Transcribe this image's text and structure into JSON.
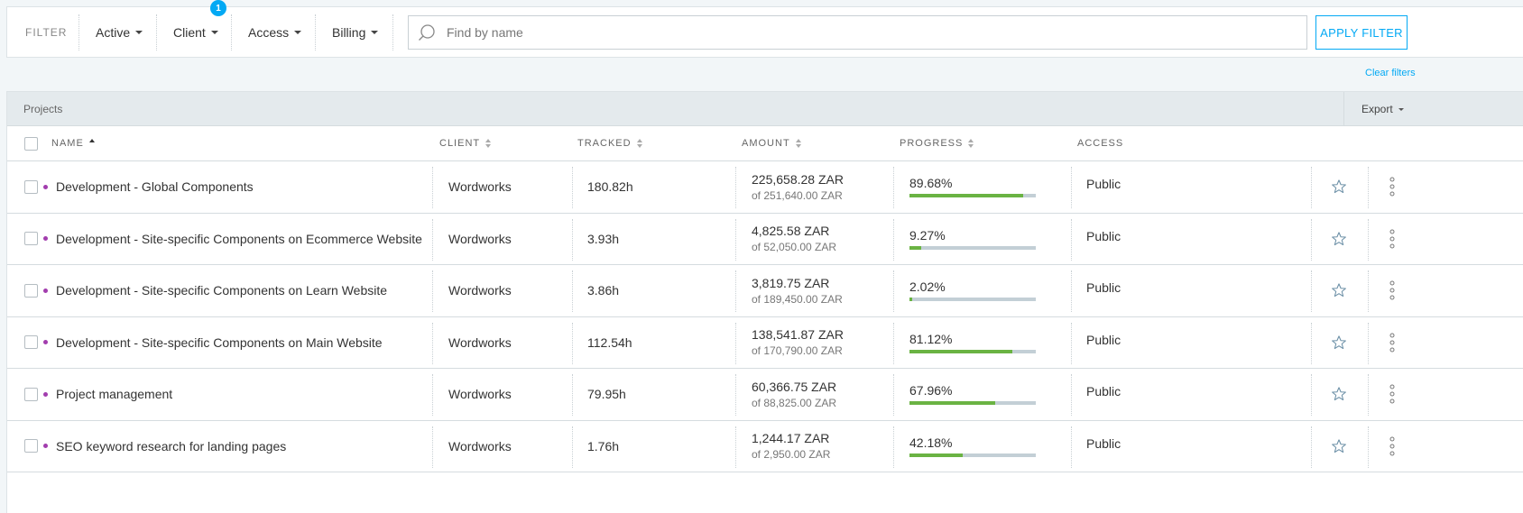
{
  "filter": {
    "label": "FILTER",
    "dropdowns": [
      {
        "label": "Active"
      },
      {
        "label": "Client",
        "badge": "1"
      },
      {
        "label": "Access"
      },
      {
        "label": "Billing"
      }
    ],
    "search_placeholder": "Find by name",
    "search_value": "",
    "apply_label": "APPLY FILTER",
    "clear_label": "Clear filters"
  },
  "panel": {
    "title": "Projects",
    "export_label": "Export"
  },
  "columns": {
    "name": "NAME",
    "client": "CLIENT",
    "tracked": "TRACKED",
    "amount": "AMOUNT",
    "progress": "PROGRESS",
    "access": "ACCESS"
  },
  "colors": {
    "accent": "#03a9f4",
    "project_dot": "#a23dae",
    "progress_fill": "#6ab343",
    "progress_track": "#c3cfd6"
  },
  "rows": [
    {
      "name": "Development - Global Components",
      "client": "Wordworks",
      "tracked": "180.82h",
      "amount": "225,658.28 ZAR",
      "budget": "of 251,640.00 ZAR",
      "progress_label": "89.68%",
      "progress": 89.68,
      "access": "Public"
    },
    {
      "name": "Development - Site-specific Components on Ecommerce Website",
      "client": "Wordworks",
      "tracked": "3.93h",
      "amount": "4,825.58 ZAR",
      "budget": "of 52,050.00 ZAR",
      "progress_label": "9.27%",
      "progress": 9.27,
      "access": "Public"
    },
    {
      "name": "Development - Site-specific Components on Learn Website",
      "client": "Wordworks",
      "tracked": "3.86h",
      "amount": "3,819.75 ZAR",
      "budget": "of 189,450.00 ZAR",
      "progress_label": "2.02%",
      "progress": 2.02,
      "access": "Public"
    },
    {
      "name": "Development - Site-specific Components on Main Website",
      "client": "Wordworks",
      "tracked": "112.54h",
      "amount": "138,541.87 ZAR",
      "budget": "of 170,790.00 ZAR",
      "progress_label": "81.12%",
      "progress": 81.12,
      "access": "Public"
    },
    {
      "name": "Project management",
      "client": "Wordworks",
      "tracked": "79.95h",
      "amount": "60,366.75 ZAR",
      "budget": "of 88,825.00 ZAR",
      "progress_label": "67.96%",
      "progress": 67.96,
      "access": "Public"
    },
    {
      "name": "SEO keyword research for landing pages",
      "client": "Wordworks",
      "tracked": "1.76h",
      "amount": "1,244.17 ZAR",
      "budget": "of 2,950.00 ZAR",
      "progress_label": "42.18%",
      "progress": 42.18,
      "access": "Public"
    }
  ]
}
